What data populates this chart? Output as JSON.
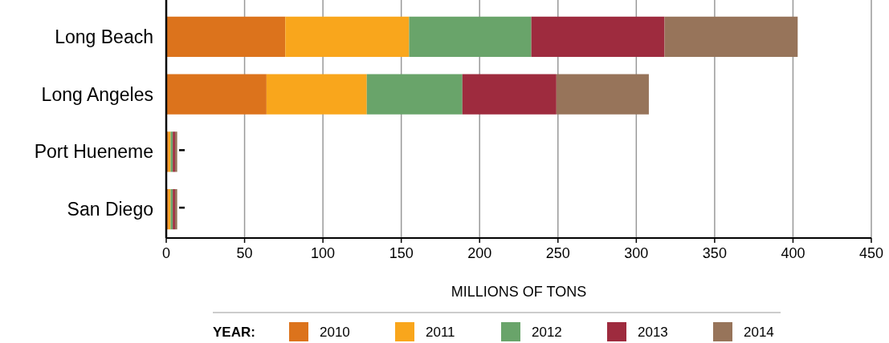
{
  "chart_data": {
    "type": "bar",
    "orientation": "horizontal",
    "stacked": true,
    "categories": [
      "Long Beach",
      "Long Angeles",
      "Port Hueneme",
      "San Diego"
    ],
    "series": [
      {
        "name": "2010",
        "color": "#dc731c",
        "values": [
          76,
          64,
          1.4,
          1.4
        ]
      },
      {
        "name": "2011",
        "color": "#f9a61c",
        "values": [
          79,
          64,
          1.4,
          1.4
        ]
      },
      {
        "name": "2012",
        "color": "#69a46a",
        "values": [
          78,
          61,
          1.4,
          1.4
        ]
      },
      {
        "name": "2013",
        "color": "#9e2b3e",
        "values": [
          85,
          60,
          1.4,
          1.4
        ]
      },
      {
        "name": "2014",
        "color": "#97745a",
        "values": [
          85,
          59,
          1.4,
          1.4
        ]
      }
    ],
    "xlim": [
      0,
      450
    ],
    "xticks": [
      0,
      50,
      100,
      150,
      200,
      250,
      300,
      350,
      400,
      450
    ],
    "grid": "x",
    "xlabel": "MILLIONS OF TONS",
    "legend": "bottom",
    "legend_title": "YEAR:"
  }
}
